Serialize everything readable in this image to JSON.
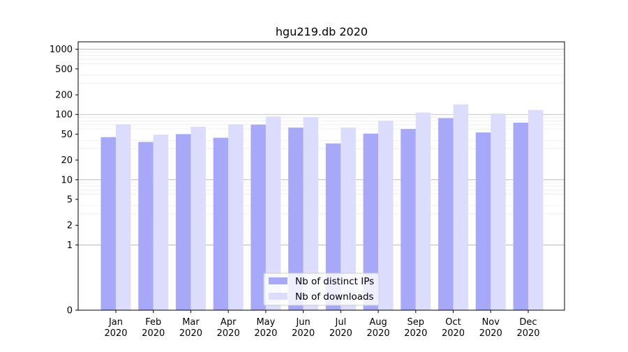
{
  "chart_data": {
    "type": "bar",
    "title": "hgu219.db 2020",
    "xlabel": "",
    "ylabel": "",
    "y_scale": "symlog",
    "ylim": [
      0,
      1300
    ],
    "y_ticks": [
      {
        "value": 0,
        "label": "0"
      },
      {
        "value": 1,
        "label": "1"
      },
      {
        "value": 2,
        "label": "2"
      },
      {
        "value": 5,
        "label": "5"
      },
      {
        "value": 10,
        "label": "10"
      },
      {
        "value": 20,
        "label": "20"
      },
      {
        "value": 50,
        "label": "50"
      },
      {
        "value": 100,
        "label": "100"
      },
      {
        "value": 200,
        "label": "200"
      },
      {
        "value": 500,
        "label": "500"
      },
      {
        "value": 1000,
        "label": "1000"
      }
    ],
    "categories": [
      {
        "month": "Jan",
        "year": "2020"
      },
      {
        "month": "Feb",
        "year": "2020"
      },
      {
        "month": "Mar",
        "year": "2020"
      },
      {
        "month": "Apr",
        "year": "2020"
      },
      {
        "month": "May",
        "year": "2020"
      },
      {
        "month": "Jun",
        "year": "2020"
      },
      {
        "month": "Jul",
        "year": "2020"
      },
      {
        "month": "Aug",
        "year": "2020"
      },
      {
        "month": "Sep",
        "year": "2020"
      },
      {
        "month": "Oct",
        "year": "2020"
      },
      {
        "month": "Nov",
        "year": "2020"
      },
      {
        "month": "Dec",
        "year": "2020"
      }
    ],
    "series": [
      {
        "name": "Nb of distinct IPs",
        "color": "#a8a8f8",
        "values": [
          45,
          38,
          50,
          44,
          70,
          63,
          36,
          51,
          60,
          88,
          53,
          75
        ]
      },
      {
        "name": "Nb of downloads",
        "color": "#dcdcfc",
        "values": [
          71,
          49,
          65,
          71,
          93,
          91,
          63,
          80,
          107,
          143,
          103,
          117
        ]
      }
    ],
    "grid": true,
    "legend_position": "bottom-center"
  }
}
